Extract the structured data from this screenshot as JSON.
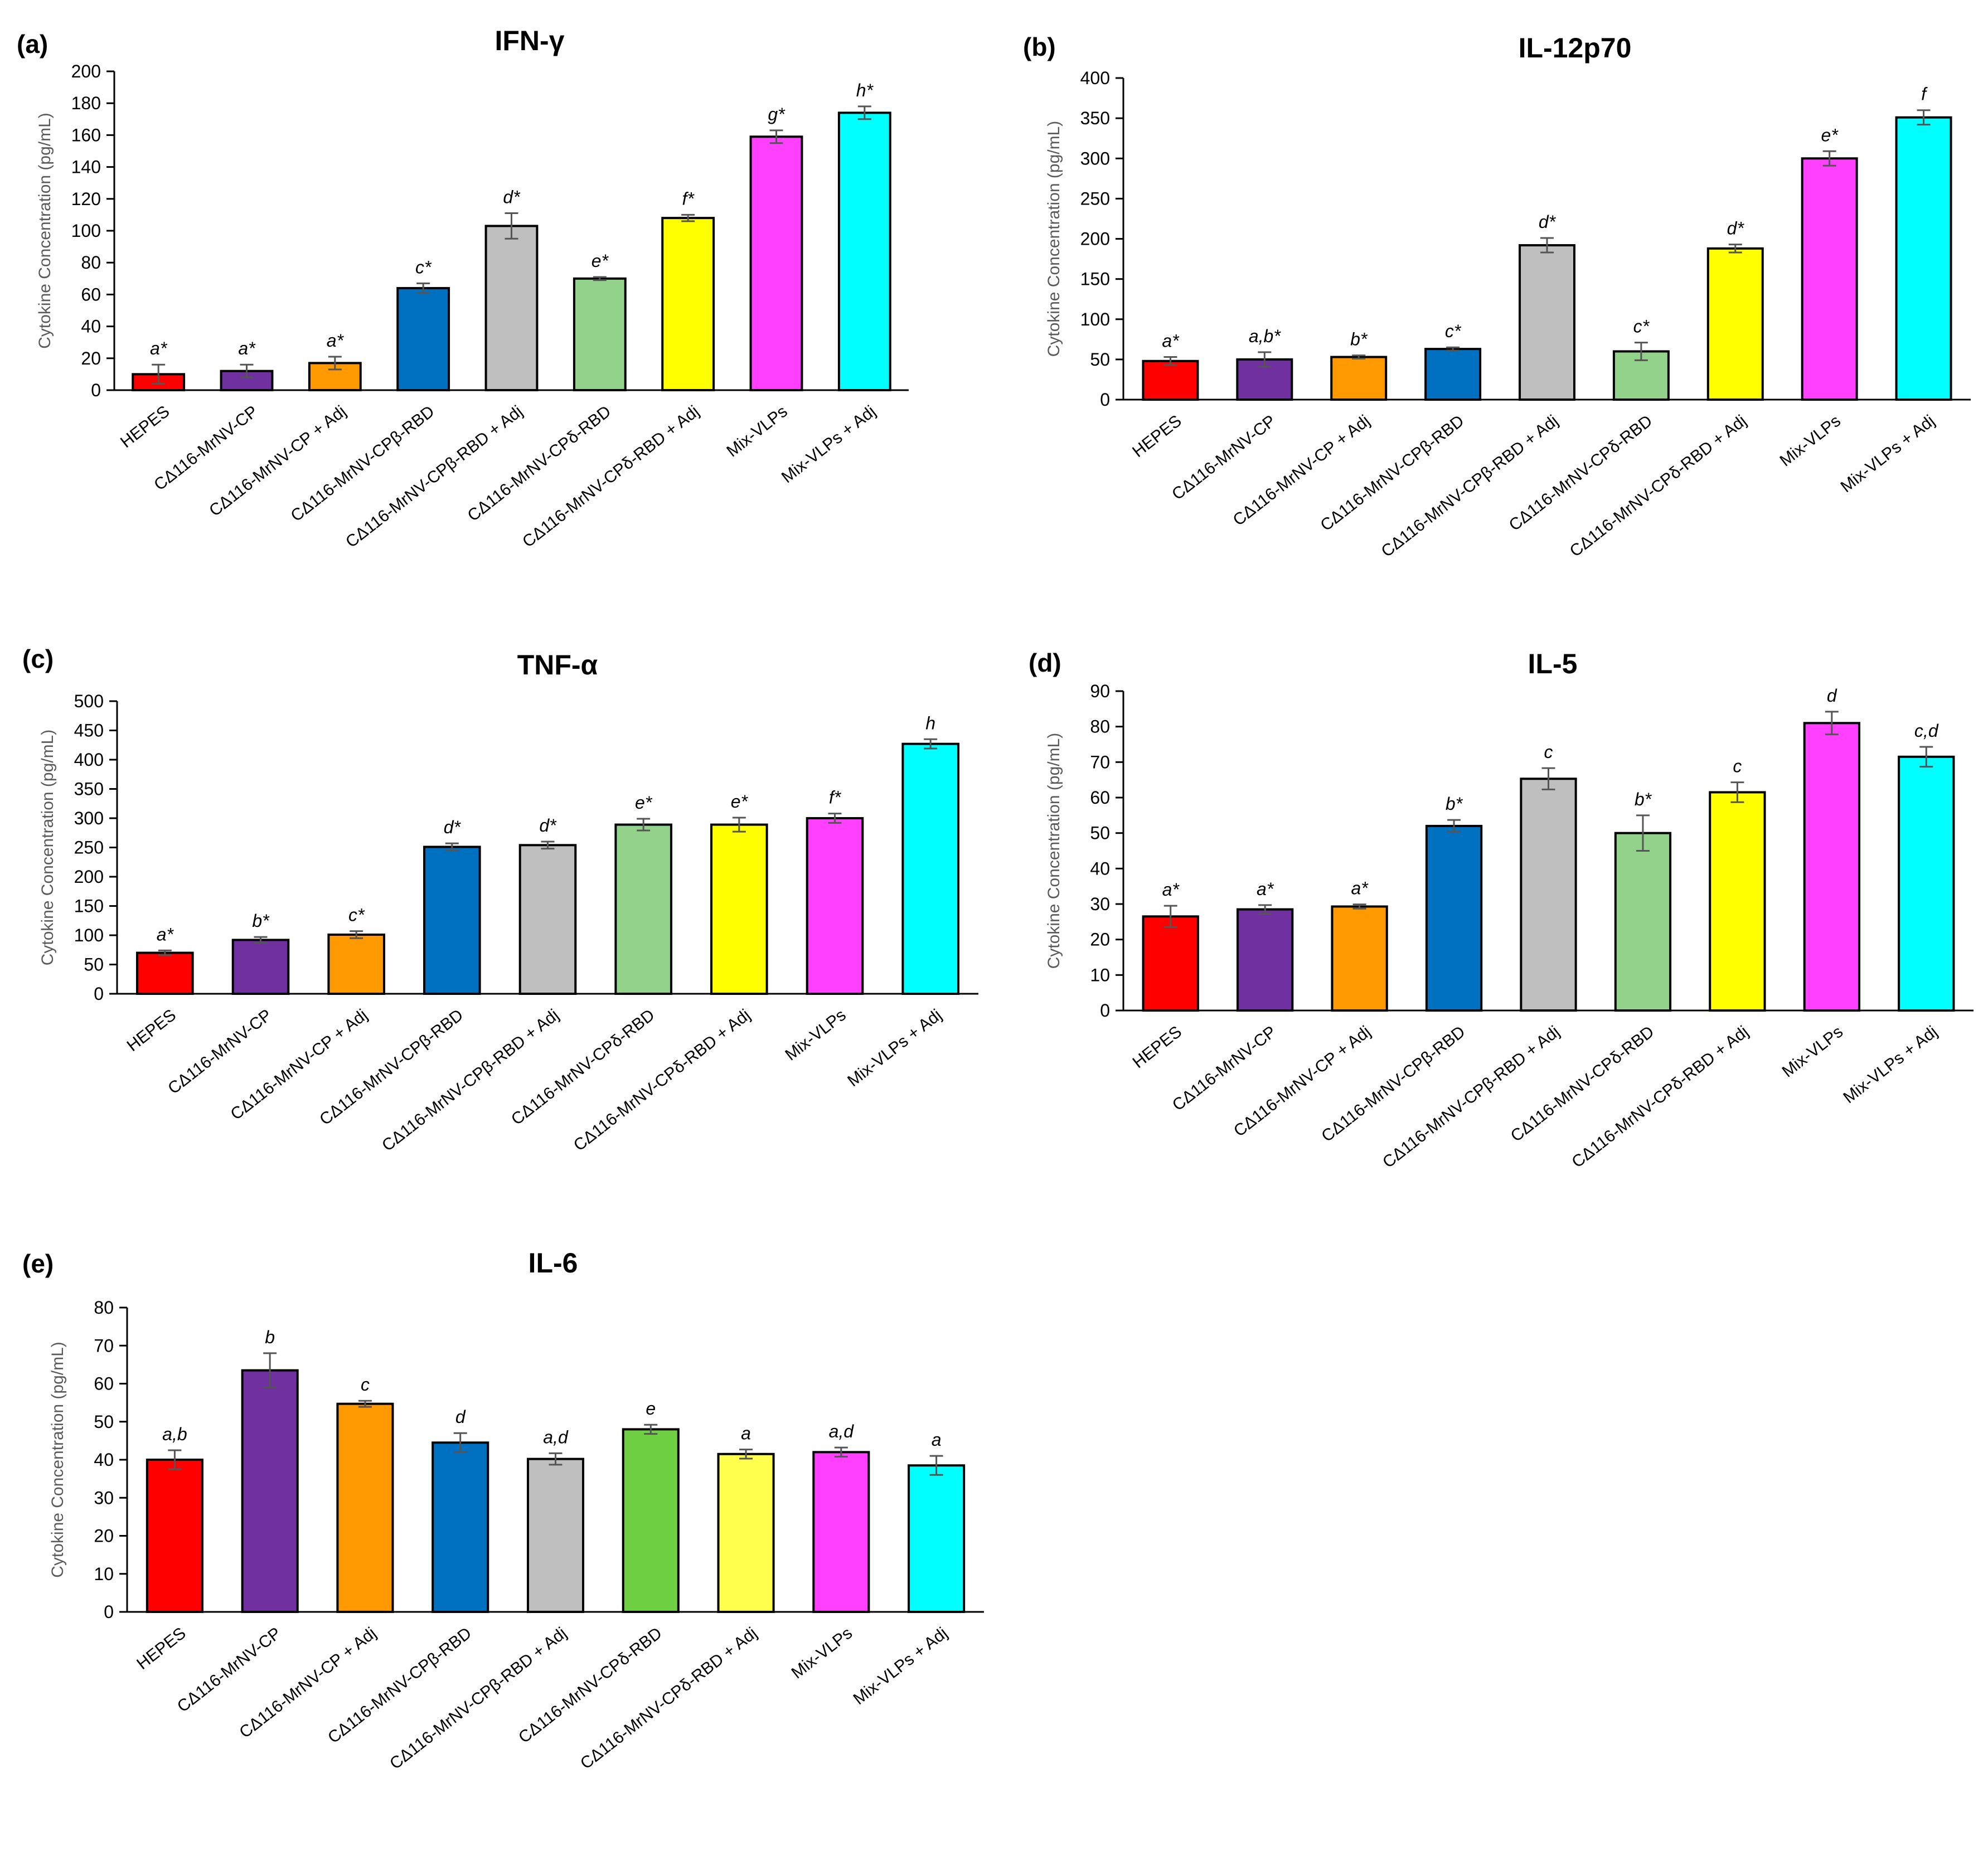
{
  "figure": {
    "categories": [
      "HEPES",
      "CΔ116-MrNV-CP",
      "CΔ116-MrNV-CP + Adj",
      "CΔ116-MrNV-CPβ-RBD",
      "CΔ116-MrNV-CPβ-RBD + Adj",
      "CΔ116-MrNV-CPδ-RBD",
      "CΔ116-MrNV-CPδ-RBD + Adj",
      "Mix-VLPs",
      "Mix-VLPs + Adj"
    ],
    "ylabel": "Cytokine Concentration (pg/mL)"
  },
  "chart_data": [
    {
      "type": "bar",
      "panel_label": "(a)",
      "title": "IFN-γ",
      "ylabel": "Cytokine Concentration (pg/mL)",
      "ylim": [
        0,
        200
      ],
      "yticks": [
        0,
        20,
        40,
        60,
        80,
        100,
        120,
        140,
        160,
        180,
        200
      ],
      "values": [
        10,
        12,
        17,
        64,
        103,
        70,
        108,
        159,
        174
      ],
      "errors": [
        6,
        4,
        4,
        3,
        8,
        1,
        2,
        4,
        4
      ],
      "significance": [
        "a*",
        "a*",
        "a*",
        "c*",
        "d*",
        "e*",
        "f*",
        "g*",
        "h*"
      ],
      "colors": [
        "#ff0000",
        "#7030a0",
        "#ff9900",
        "#0070c0",
        "#bfbfbf",
        "#92d28a",
        "#ffff00",
        "#ff40ff",
        "#00ffff"
      ]
    },
    {
      "type": "bar",
      "panel_label": "(b)",
      "title": "IL-12p70",
      "ylabel": "Cytokine Concentration (pg/mL)",
      "ylim": [
        0,
        400
      ],
      "yticks": [
        0,
        50,
        100,
        150,
        200,
        250,
        300,
        350,
        400
      ],
      "values": [
        48,
        50,
        53,
        63,
        192,
        60,
        188,
        300,
        351
      ],
      "errors": [
        5,
        9,
        2,
        2,
        9,
        11,
        5,
        9,
        9
      ],
      "significance": [
        "a*",
        "a,b*",
        "b*",
        "c*",
        "d*",
        "c*",
        "d*",
        "e*",
        "f"
      ],
      "colors": [
        "#ff0000",
        "#7030a0",
        "#ff9900",
        "#0070c0",
        "#bfbfbf",
        "#92d28a",
        "#ffff00",
        "#ff40ff",
        "#00ffff"
      ]
    },
    {
      "type": "bar",
      "panel_label": "(c)",
      "title": "TNF-α",
      "ylabel": "Cytokine Concentration (pg/mL)",
      "ylim": [
        0,
        500
      ],
      "yticks": [
        0,
        50,
        100,
        150,
        200,
        250,
        300,
        350,
        400,
        450,
        500
      ],
      "values": [
        70,
        92,
        101,
        251,
        254,
        289,
        289,
        300,
        427
      ],
      "errors": [
        4,
        5,
        6,
        6,
        6,
        10,
        12,
        8,
        8
      ],
      "significance": [
        "a*",
        "b*",
        "c*",
        "d*",
        "d*",
        "e*",
        "e*",
        "f*",
        "h"
      ],
      "colors": [
        "#ff0000",
        "#7030a0",
        "#ff9900",
        "#0070c0",
        "#bfbfbf",
        "#92d28a",
        "#ffff00",
        "#ff40ff",
        "#00ffff"
      ]
    },
    {
      "type": "bar",
      "panel_label": "(d)",
      "title": "IL-5",
      "ylabel": "Cytokine Concentration (pg/mL)",
      "ylim": [
        0,
        90
      ],
      "yticks": [
        0,
        10,
        20,
        30,
        40,
        50,
        60,
        70,
        80,
        90
      ],
      "values": [
        26.5,
        28.5,
        29.3,
        52,
        65.3,
        50,
        61.5,
        81,
        71.5
      ],
      "errors": [
        3,
        1.2,
        0.6,
        1.7,
        3,
        5,
        2.8,
        3.2,
        2.8
      ],
      "significance": [
        "a*",
        "a*",
        "a*",
        "b*",
        "c",
        "b*",
        "c",
        "d",
        "c,d"
      ],
      "colors": [
        "#ff0000",
        "#7030a0",
        "#ff9900",
        "#0070c0",
        "#bfbfbf",
        "#92d28a",
        "#ffff00",
        "#ff40ff",
        "#00ffff"
      ]
    },
    {
      "type": "bar",
      "panel_label": "(e)",
      "title": "IL-6",
      "ylabel": "Cytokine Concentration (pg/mL)",
      "ylim": [
        0,
        80
      ],
      "yticks": [
        0,
        10,
        20,
        30,
        40,
        50,
        60,
        70,
        80
      ],
      "values": [
        40,
        63.5,
        54.7,
        44.5,
        40.2,
        48,
        41.5,
        42,
        38.5
      ],
      "errors": [
        2.5,
        4.5,
        0.8,
        2.5,
        1.5,
        1.2,
        1.2,
        1.2,
        2.5
      ],
      "significance": [
        "a,b",
        "b",
        "c",
        "d",
        "a,d",
        "e",
        "a",
        "a,d",
        "a"
      ],
      "colors": [
        "#ff0000",
        "#7030a0",
        "#ff9900",
        "#0070c0",
        "#bfbfbf",
        "#70d044",
        "#ffff4d",
        "#ff40ff",
        "#00ffff"
      ]
    }
  ]
}
